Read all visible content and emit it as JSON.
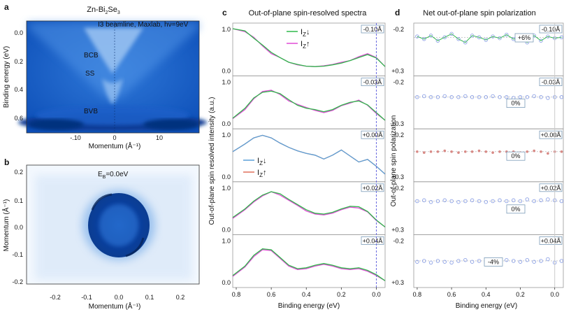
{
  "panels": {
    "a": {
      "letter": "a",
      "title_prefix": "Zn-Bi",
      "title_sub1": "2",
      "title_mid": "Se",
      "title_sub2": "3",
      "beamline": "I3 beamline, Maxlab, hν=9eV",
      "ylabel": "Binding energy (eV)",
      "xlabel": "Momentum (Å⁻¹)",
      "yticks": [
        "0.0",
        "0.2",
        "0.4",
        "0.6"
      ],
      "xticks": [
        "-.10",
        "0",
        "10"
      ],
      "labels": [
        "BCB",
        "SS",
        "BVB"
      ]
    },
    "b": {
      "letter": "b",
      "eb_prefix": "E",
      "eb_sub": "B",
      "eb_value": "=0.0eV",
      "ylabel": "Momentum (Å⁻¹)",
      "xlabel": "Momentum (Å⁻¹)",
      "yticks": [
        "0.2",
        "0.1",
        "0.0",
        "-0.1",
        "-0.2"
      ],
      "xticks": [
        "-0.2",
        "-0.1",
        "0.0",
        "0.1",
        "0.2"
      ]
    },
    "c": {
      "letter": "c",
      "title": "Out-of-plane spin-resolved spectra",
      "ylabel": "Out-of-plane spin resolved intensity (a.u.)",
      "xlabel": "Binding energy (eV)",
      "xticks": [
        "0.8",
        "0.6",
        "0.4",
        "0.2",
        "0.0"
      ],
      "ytick_top": "1.0",
      "ytick_bottom": "0.0",
      "legend_i": "I",
      "legend_sub": "Z",
      "legend_down": "↓",
      "legend_up": "↑"
    },
    "d": {
      "letter": "d",
      "title": "Net out-of-plane spin polarization",
      "ylabel": "Out-of-plane spin polarization",
      "xlabel": "Binding energy (eV)",
      "xticks": [
        "0.8",
        "0.6",
        "0.4",
        "0.2",
        "0.0"
      ],
      "ytick_top": "-0.2",
      "ytick_bottom": "+0.3"
    }
  },
  "colors": {
    "i_down_top": "#2fb84a",
    "i_up_top": "#e04bd6",
    "i_down_mid": "#5aa0d8",
    "i_up_mid": "#e0705a",
    "marker_blue": "#8fa3e6",
    "marker_red": "#d88a86",
    "guide_line": "#6a6adf",
    "arpes_dark": "#0b3f9e",
    "arpes_light": "#bcd6f5"
  },
  "chart_data": [
    {
      "panel": "c",
      "type": "line",
      "x_unit": "eV",
      "xlim": [
        0.8,
        -0.05
      ],
      "ylim": [
        0.0,
        1.0
      ],
      "rows": [
        {
          "label": "-0.10Å",
          "x": [
            0.82,
            0.75,
            0.7,
            0.65,
            0.6,
            0.55,
            0.5,
            0.45,
            0.4,
            0.35,
            0.3,
            0.25,
            0.2,
            0.15,
            0.1,
            0.05,
            0.0,
            -0.05
          ],
          "i_down": [
            1.0,
            0.95,
            0.78,
            0.62,
            0.45,
            0.33,
            0.22,
            0.17,
            0.13,
            0.12,
            0.13,
            0.16,
            0.2,
            0.26,
            0.33,
            0.4,
            0.32,
            0.12
          ],
          "i_up": [
            1.0,
            0.93,
            0.8,
            0.6,
            0.42,
            0.33,
            0.22,
            0.16,
            0.13,
            0.12,
            0.14,
            0.17,
            0.22,
            0.26,
            0.35,
            0.42,
            0.33,
            0.12
          ]
        },
        {
          "label": "-0.03Å",
          "x": [
            0.82,
            0.75,
            0.7,
            0.65,
            0.6,
            0.55,
            0.5,
            0.45,
            0.4,
            0.35,
            0.3,
            0.25,
            0.2,
            0.15,
            0.1,
            0.05,
            0.0,
            -0.05
          ],
          "i_down": [
            0.15,
            0.38,
            0.62,
            0.75,
            0.78,
            0.72,
            0.58,
            0.45,
            0.38,
            0.35,
            0.3,
            0.35,
            0.45,
            0.52,
            0.55,
            0.46,
            0.28,
            0.1
          ],
          "i_up": [
            0.14,
            0.35,
            0.6,
            0.77,
            0.8,
            0.7,
            0.55,
            0.47,
            0.4,
            0.33,
            0.28,
            0.33,
            0.44,
            0.5,
            0.57,
            0.45,
            0.26,
            0.1
          ]
        },
        {
          "label": "+0.00Å",
          "x": [
            0.82,
            0.75,
            0.7,
            0.65,
            0.6,
            0.55,
            0.5,
            0.45,
            0.4,
            0.35,
            0.3,
            0.25,
            0.2,
            0.15,
            0.1,
            0.05,
            0.0,
            -0.05
          ],
          "i_down": [
            0.6,
            0.78,
            0.92,
            0.98,
            0.92,
            0.8,
            0.7,
            0.62,
            0.56,
            0.52,
            0.43,
            0.52,
            0.64,
            0.5,
            0.36,
            0.42,
            0.26,
            0.08
          ],
          "i_up": [
            0.6,
            0.78,
            0.92,
            0.98,
            0.92,
            0.8,
            0.7,
            0.62,
            0.56,
            0.52,
            0.43,
            0.52,
            0.64,
            0.5,
            0.36,
            0.42,
            0.26,
            0.08
          ]
        },
        {
          "label": "+0.02Å",
          "x": [
            0.82,
            0.75,
            0.7,
            0.65,
            0.6,
            0.55,
            0.5,
            0.45,
            0.4,
            0.35,
            0.3,
            0.25,
            0.2,
            0.15,
            0.1,
            0.05,
            0.0,
            -0.05
          ],
          "i_down": [
            0.3,
            0.5,
            0.68,
            0.82,
            0.9,
            0.85,
            0.72,
            0.6,
            0.48,
            0.4,
            0.38,
            0.42,
            0.5,
            0.56,
            0.55,
            0.44,
            0.24,
            0.08
          ],
          "i_up": [
            0.28,
            0.48,
            0.66,
            0.8,
            0.9,
            0.82,
            0.7,
            0.58,
            0.45,
            0.38,
            0.36,
            0.4,
            0.48,
            0.54,
            0.52,
            0.43,
            0.23,
            0.08
          ]
        },
        {
          "label": "+0.04Å",
          "x": [
            0.82,
            0.75,
            0.7,
            0.65,
            0.6,
            0.55,
            0.5,
            0.45,
            0.4,
            0.35,
            0.3,
            0.25,
            0.2,
            0.15,
            0.1,
            0.05,
            0.0,
            -0.05
          ],
          "i_down": [
            0.18,
            0.4,
            0.65,
            0.8,
            0.78,
            0.6,
            0.42,
            0.34,
            0.36,
            0.42,
            0.46,
            0.42,
            0.36,
            0.34,
            0.36,
            0.3,
            0.2,
            0.06
          ],
          "i_up": [
            0.16,
            0.38,
            0.62,
            0.78,
            0.76,
            0.58,
            0.4,
            0.32,
            0.34,
            0.4,
            0.44,
            0.4,
            0.34,
            0.32,
            0.34,
            0.28,
            0.18,
            0.06
          ]
        }
      ]
    },
    {
      "panel": "d",
      "type": "scatter",
      "x_unit": "eV",
      "xlim": [
        0.8,
        -0.05
      ],
      "ylim": [
        -0.2,
        0.3
      ],
      "rows": [
        {
          "label": "-0.10Å",
          "annotation": "+6%",
          "baseline": -0.1,
          "x": [
            0.8,
            0.76,
            0.72,
            0.68,
            0.64,
            0.6,
            0.56,
            0.52,
            0.48,
            0.44,
            0.4,
            0.36,
            0.32,
            0.28,
            0.24,
            0.2,
            0.16,
            0.12,
            0.08,
            0.04,
            0.0,
            -0.04
          ],
          "y": [
            -0.11,
            -0.08,
            -0.12,
            -0.06,
            -0.1,
            -0.14,
            -0.08,
            -0.04,
            -0.12,
            -0.1,
            -0.07,
            -0.11,
            -0.09,
            -0.13,
            -0.08,
            -0.1,
            -0.04,
            -0.12,
            -0.06,
            -0.11,
            -0.09,
            -0.1
          ]
        },
        {
          "label": "-0.03Å",
          "annotation": "0%",
          "baseline": -0.02,
          "x": [
            0.8,
            0.76,
            0.72,
            0.68,
            0.64,
            0.6,
            0.56,
            0.52,
            0.48,
            0.44,
            0.4,
            0.36,
            0.32,
            0.28,
            0.24,
            0.2,
            0.16,
            0.12,
            0.08,
            0.04,
            0.0,
            -0.04
          ],
          "y": [
            -0.02,
            -0.03,
            -0.02,
            -0.02,
            -0.03,
            -0.02,
            -0.02,
            -0.03,
            -0.02,
            -0.02,
            -0.02,
            -0.03,
            -0.02,
            -0.02,
            -0.01,
            -0.02,
            -0.02,
            -0.03,
            -0.02,
            -0.01,
            -0.02,
            -0.02
          ]
        },
        {
          "label": "+0.00Å",
          "annotation": "0%",
          "baseline": 0.0,
          "x": [
            0.8,
            0.76,
            0.72,
            0.68,
            0.64,
            0.6,
            0.56,
            0.52,
            0.48,
            0.44,
            0.4,
            0.36,
            0.32,
            0.28,
            0.24,
            0.2,
            0.16,
            0.12,
            0.08,
            0.04,
            0.0,
            -0.04
          ],
          "y": [
            0.0,
            0.01,
            0.0,
            0.0,
            -0.01,
            0.0,
            0.01,
            0.0,
            0.0,
            -0.01,
            0.0,
            0.01,
            0.0,
            0.0,
            0.0,
            0.01,
            0.0,
            -0.01,
            0.0,
            0.02,
            0.0,
            0.0
          ]
        },
        {
          "label": "+0.02Å",
          "annotation": "0%",
          "baseline": -0.04,
          "x": [
            0.8,
            0.76,
            0.72,
            0.68,
            0.64,
            0.6,
            0.56,
            0.52,
            0.48,
            0.44,
            0.4,
            0.36,
            0.32,
            0.28,
            0.24,
            0.2,
            0.16,
            0.12,
            0.08,
            0.04,
            0.0,
            -0.04
          ],
          "y": [
            -0.04,
            -0.05,
            -0.03,
            -0.04,
            -0.05,
            -0.04,
            -0.03,
            -0.04,
            -0.05,
            -0.04,
            -0.03,
            -0.04,
            -0.05,
            -0.04,
            -0.05,
            -0.04,
            -0.06,
            -0.04,
            -0.05,
            -0.06,
            -0.05,
            -0.04
          ]
        },
        {
          "label": "+0.04Å",
          "annotation": "-4%",
          "baseline": 0.04,
          "x": [
            0.8,
            0.76,
            0.72,
            0.68,
            0.64,
            0.6,
            0.56,
            0.52,
            0.48,
            0.44,
            0.4,
            0.36,
            0.32,
            0.28,
            0.24,
            0.2,
            0.16,
            0.12,
            0.08,
            0.04,
            0.0,
            -0.04
          ],
          "y": [
            0.05,
            0.04,
            0.06,
            0.04,
            0.05,
            0.06,
            0.04,
            0.03,
            0.05,
            0.04,
            0.06,
            0.04,
            0.05,
            0.03,
            0.04,
            0.05,
            0.03,
            0.05,
            0.04,
            0.02,
            0.06,
            0.04
          ]
        }
      ]
    }
  ]
}
